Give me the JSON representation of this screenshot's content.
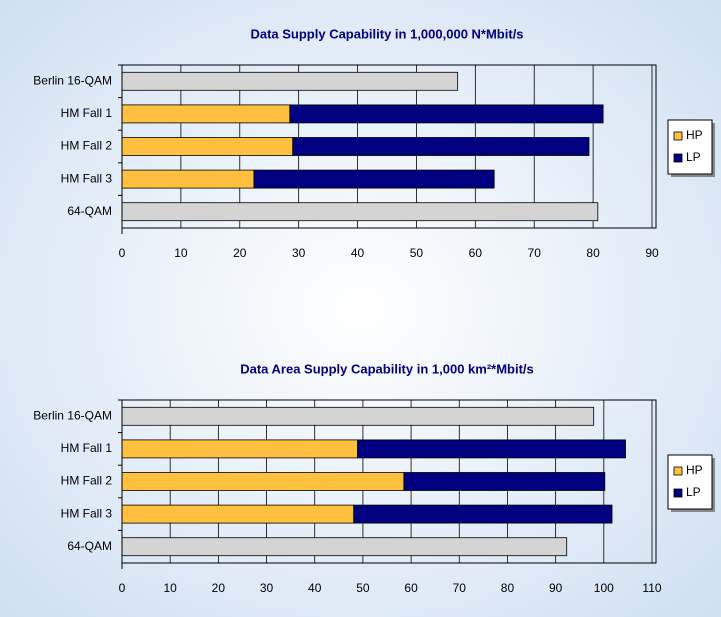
{
  "chart_data": [
    {
      "type": "stacked-bar-horizontal",
      "title": "Data Supply Capability in 1,000,000 N*Mbit/s",
      "categories": [
        "Berlin 16-QAM",
        "HM Fall 1",
        "HM Fall 2",
        "HM Fall 3",
        "64-QAM"
      ],
      "single_values": [
        57.0,
        null,
        null,
        null,
        80.8
      ],
      "single_color": "#d4d4d4",
      "series": [
        {
          "name": "HP",
          "color": "#ffc040",
          "values": [
            null,
            28.5,
            29.0,
            22.4,
            null
          ]
        },
        {
          "name": "LP",
          "color": "#000080",
          "values": [
            null,
            53.2,
            50.3,
            40.8,
            null
          ]
        }
      ],
      "xlim": [
        0,
        90
      ],
      "xticks": [
        0,
        10,
        20,
        30,
        40,
        50,
        60,
        70,
        80,
        90
      ],
      "grid": true,
      "legend": "right"
    },
    {
      "type": "stacked-bar-horizontal",
      "title": "Data Area Supply Capability in 1,000 km²*Mbit/s",
      "categories": [
        "Berlin 16-QAM",
        "HM Fall 1",
        "HM Fall 2",
        "HM Fall 3",
        "64-QAM"
      ],
      "single_values": [
        97.9,
        null,
        null,
        null,
        92.3
      ],
      "single_color": "#d4d4d4",
      "series": [
        {
          "name": "HP",
          "color": "#ffc040",
          "values": [
            null,
            48.9,
            58.5,
            48.1,
            null
          ]
        },
        {
          "name": "LP",
          "color": "#000080",
          "values": [
            null,
            55.6,
            41.7,
            53.6,
            null
          ]
        }
      ],
      "xlim": [
        0,
        110
      ],
      "xticks": [
        0,
        10,
        20,
        30,
        40,
        50,
        60,
        70,
        80,
        90,
        100,
        110
      ],
      "grid": true,
      "legend": "right"
    }
  ]
}
